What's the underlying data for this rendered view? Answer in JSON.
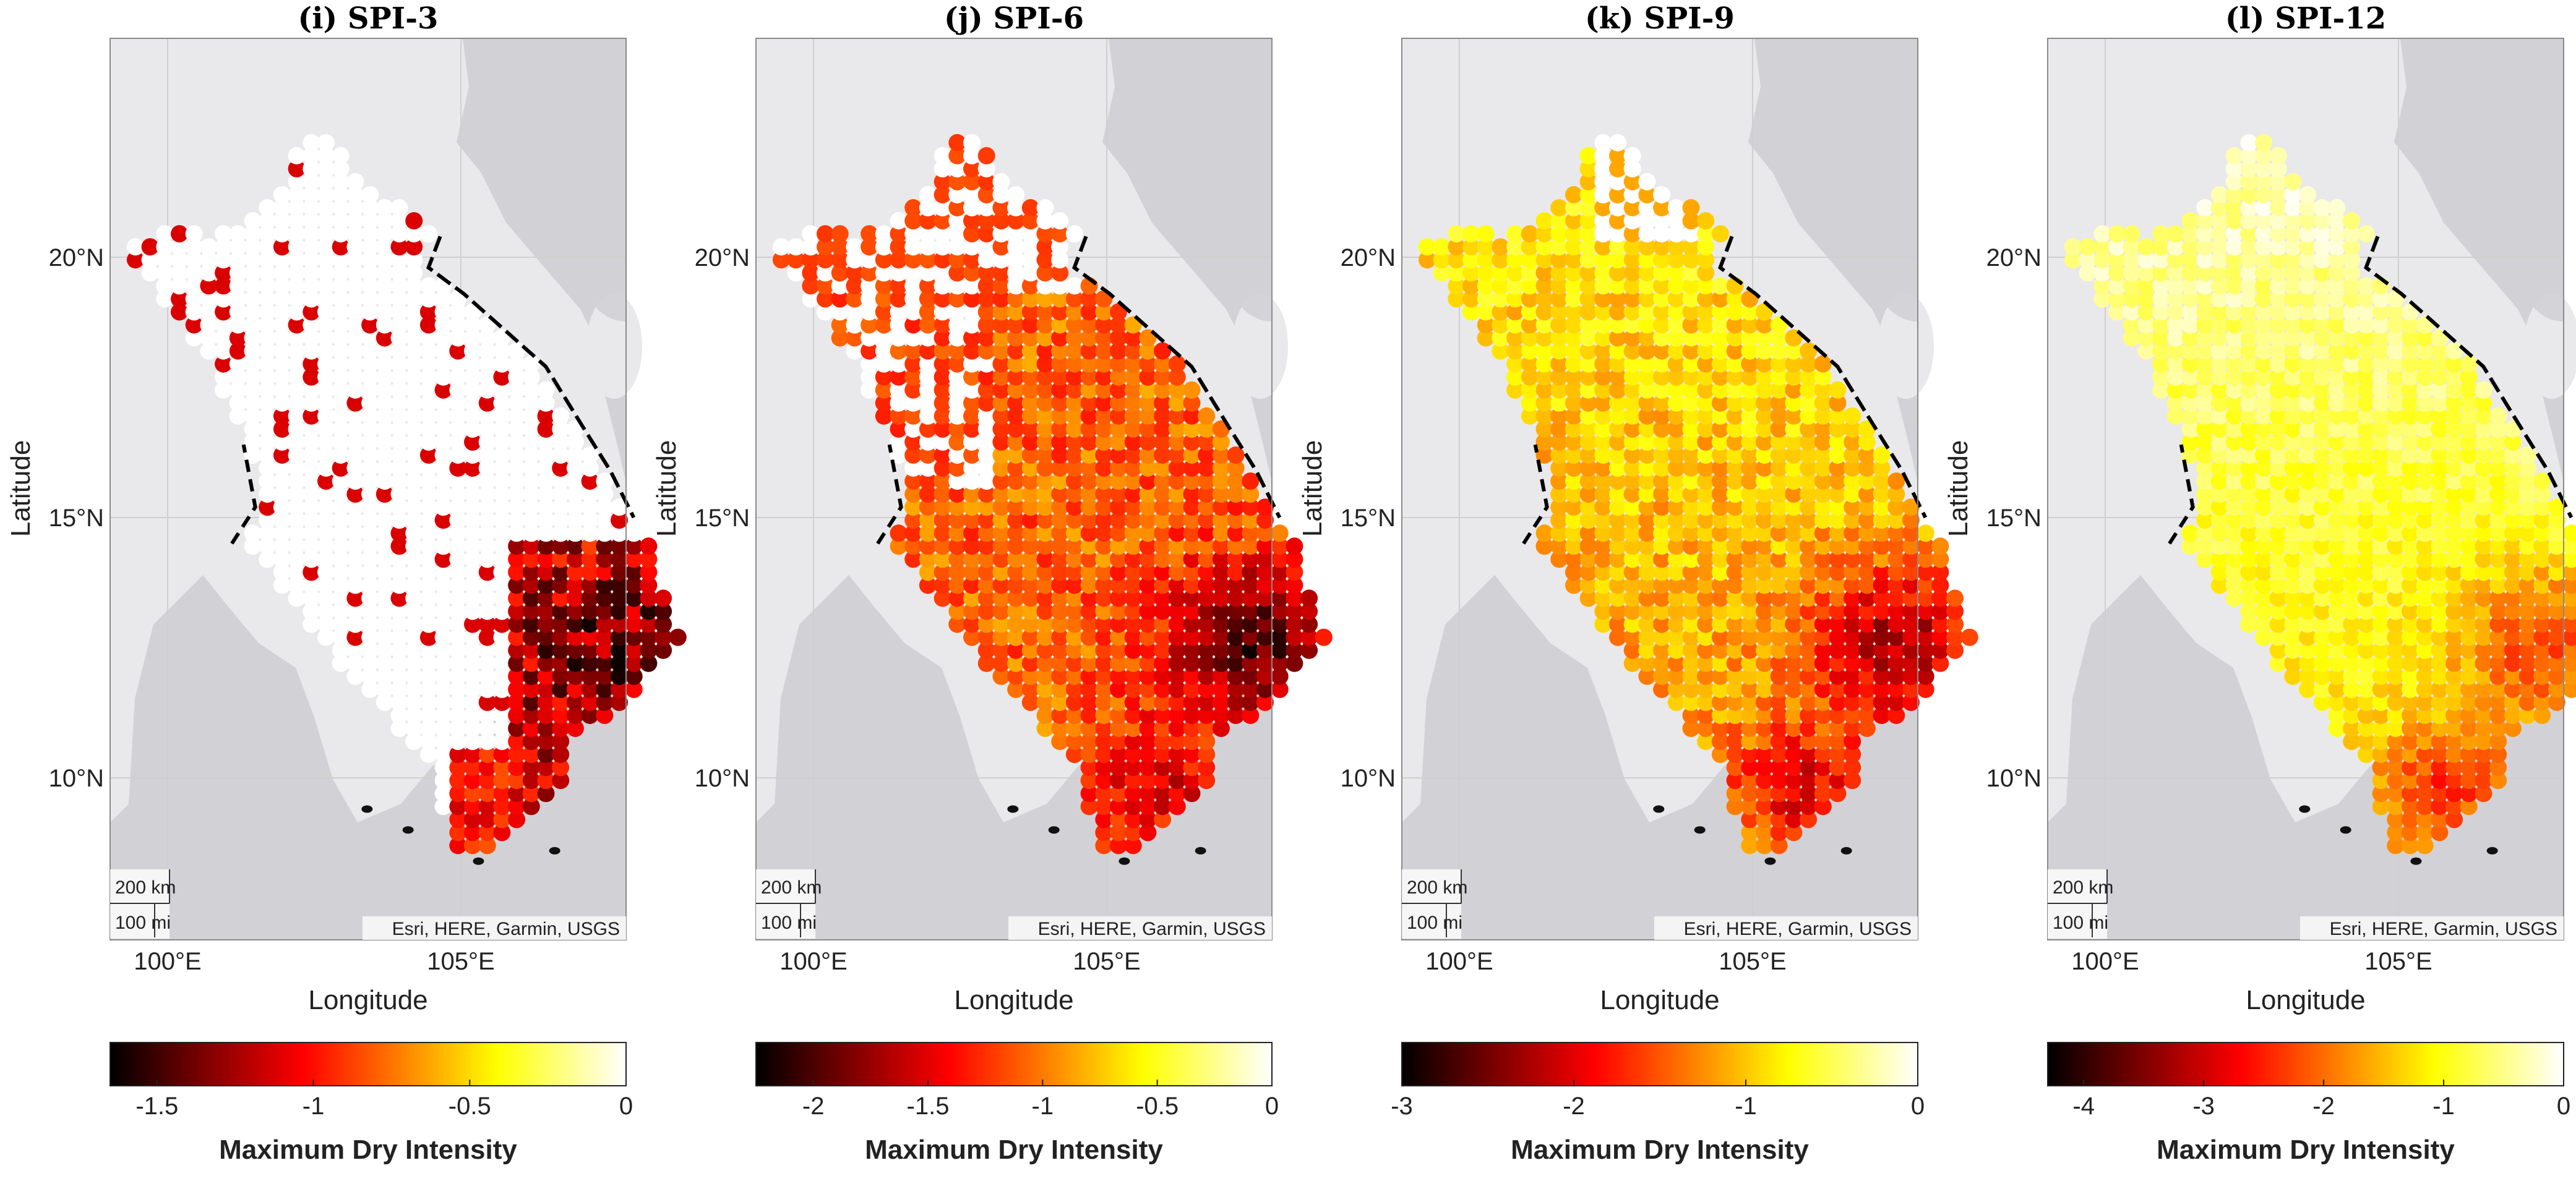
{
  "figure": {
    "colors": {
      "land": "#e9e9eb",
      "water": "#d2d2d6",
      "border": "#000000",
      "attribution_bg": "#f5f5f5"
    },
    "panels": [
      {
        "title": "(i) SPI-3",
        "ylabel": "Latitude",
        "xlabel": "Longitude",
        "lat_ticks": [
          "20°N",
          "15°N",
          "10°N"
        ],
        "lon_ticks": [
          "100°E",
          "105°E"
        ],
        "scale_km": "200 km",
        "scale_mi": "100 mi",
        "attribution": "Esri, HERE, Garmin, USGS",
        "colorbar": {
          "label": "Maximum Dry Intensity",
          "min": -1.65,
          "max": 0,
          "ticks": [
            "-1.5",
            "-1",
            "-0.5",
            "0"
          ],
          "tick_values": [
            -1.5,
            -1,
            -0.5,
            0
          ]
        }
      },
      {
        "title": "(j) SPI-6",
        "ylabel": "Latitude",
        "xlabel": "Longitude",
        "lat_ticks": [
          "20°N",
          "15°N",
          "10°N"
        ],
        "lon_ticks": [
          "100°E",
          "105°E"
        ],
        "scale_km": "200 km",
        "scale_mi": "100 mi",
        "attribution": "Esri, HERE, Garmin, USGS",
        "colorbar": {
          "label": "Maximum Dry Intensity",
          "min": -2.25,
          "max": 0,
          "ticks": [
            "-2",
            "-1.5",
            "-1",
            "-0.5",
            "0"
          ],
          "tick_values": [
            -2,
            -1.5,
            -1,
            -0.5,
            0
          ]
        }
      },
      {
        "title": "(k) SPI-9",
        "ylabel": "Latitude",
        "xlabel": "Longitude",
        "lat_ticks": [
          "20°N",
          "15°N",
          "10°N"
        ],
        "lon_ticks": [
          "100°E",
          "105°E"
        ],
        "scale_km": "200 km",
        "scale_mi": "100 mi",
        "attribution": "Esri, HERE, Garmin, USGS",
        "colorbar": {
          "label": "Maximum Dry Intensity",
          "min": -3,
          "max": 0,
          "ticks": [
            "-3",
            "-2",
            "-1",
            "0"
          ],
          "tick_values": [
            -3,
            -2,
            -1,
            0
          ]
        }
      },
      {
        "title": "(l) SPI-12",
        "ylabel": "Latitude",
        "xlabel": "Longitude",
        "lat_ticks": [
          "20°N",
          "15°N",
          "10°N"
        ],
        "lon_ticks": [
          "100°E",
          "105°E"
        ],
        "scale_km": "200 km",
        "scale_mi": "100 mi",
        "attribution": "Esri, HERE, Garmin, USGS",
        "colorbar": {
          "label": "Maximum Dry Intensity",
          "min": -4.3,
          "max": 0,
          "ticks": [
            "-4",
            "-3",
            "-2",
            "-1",
            "0"
          ],
          "tick_values": [
            -4,
            -3,
            -2,
            -1,
            0
          ]
        }
      }
    ]
  }
}
